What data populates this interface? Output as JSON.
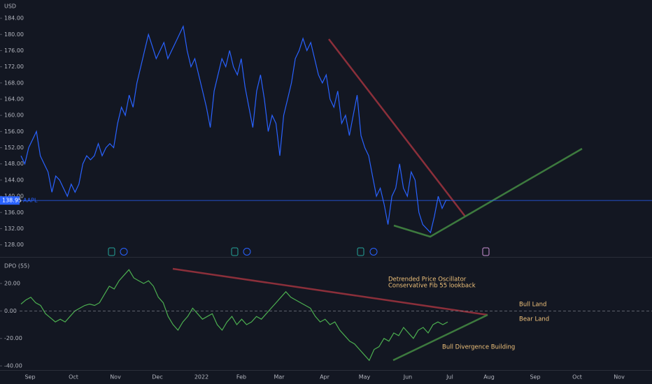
{
  "chart_data": [
    {
      "type": "line",
      "axis_label": "USD",
      "series": [
        {
          "name": "AAPL",
          "color": "#2962ff",
          "values": [
            150,
            148,
            152,
            154,
            156,
            150,
            148,
            146,
            141,
            145,
            144,
            142,
            140,
            143,
            141,
            143,
            148,
            150,
            149,
            150,
            153,
            150,
            152,
            153,
            152,
            158,
            162,
            160,
            165,
            162,
            168,
            172,
            176,
            180,
            177,
            174,
            176,
            178,
            174,
            176,
            178,
            180,
            182,
            176,
            172,
            174,
            170,
            166,
            162,
            157,
            166,
            170,
            174,
            172,
            176,
            172,
            170,
            174,
            167,
            162,
            157,
            166,
            170,
            164,
            156,
            160,
            158,
            150,
            160,
            164,
            168,
            174,
            176,
            179,
            176,
            178,
            174,
            170,
            168,
            170,
            164,
            162,
            166,
            158,
            160,
            155,
            160,
            165,
            155,
            152,
            150,
            145,
            140,
            142,
            138,
            133,
            140,
            142,
            148,
            142,
            140,
            146,
            144,
            136,
            133,
            132,
            131,
            135,
            140,
            137,
            139,
            138.95
          ]
        }
      ],
      "current_price": 138.95,
      "ylim": [
        125,
        188.5
      ],
      "yticks": [
        {
          "value": 128,
          "label": "128.00"
        },
        {
          "value": 132,
          "label": "132.00"
        },
        {
          "value": 136,
          "label": "136.00"
        },
        {
          "value": 140,
          "label": "140.00"
        },
        {
          "value": 144,
          "label": "144.00"
        },
        {
          "value": 148,
          "label": "148.00"
        },
        {
          "value": 152,
          "label": "152.00"
        },
        {
          "value": 156,
          "label": "156.00"
        },
        {
          "value": 160,
          "label": "160.00"
        },
        {
          "value": 164,
          "label": "164.00"
        },
        {
          "value": 168,
          "label": "168.00"
        },
        {
          "value": 172,
          "label": "172.00"
        },
        {
          "value": 176,
          "label": "176.00"
        },
        {
          "value": 180,
          "label": "180.00"
        },
        {
          "value": 184,
          "label": "184.00"
        }
      ]
    },
    {
      "type": "line",
      "title": "DPO (55)",
      "series": [
        {
          "color": "#4caf50",
          "values": [
            5,
            8,
            10,
            6,
            4,
            -2,
            -5,
            -8,
            -6,
            -8,
            -4,
            0,
            2,
            4,
            5,
            4,
            6,
            12,
            18,
            16,
            22,
            26,
            30,
            24,
            22,
            20,
            22,
            18,
            10,
            6,
            -4,
            -10,
            -14,
            -8,
            -4,
            2,
            -2,
            -6,
            -4,
            -2,
            -10,
            -14,
            -8,
            -4,
            -10,
            -6,
            -10,
            -8,
            -4,
            -6,
            -2,
            2,
            6,
            10,
            14,
            10,
            8,
            6,
            4,
            2,
            -4,
            -8,
            -6,
            -10,
            -8,
            -14,
            -18,
            -22,
            -24,
            -28,
            -32,
            -36,
            -28,
            -26,
            -20,
            -22,
            -16,
            -18,
            -12,
            -16,
            -20,
            -14,
            -12,
            -16,
            -10,
            -8,
            -10,
            -8
          ]
        }
      ],
      "ylim": [
        -43,
        38.8
      ],
      "yticks": [
        {
          "value": -40,
          "label": "-40.00"
        },
        {
          "value": -20,
          "label": "-20.00"
        },
        {
          "value": 0,
          "label": "0.00"
        },
        {
          "value": 20,
          "label": "20.00"
        }
      ],
      "annotations": [
        "Detrended Price Oscillator",
        "Conservative Fib 55 lookback",
        "Bull Land",
        "Bear Land",
        "Bull Divergence Building"
      ]
    }
  ],
  "time_axis": [
    "Sep",
    "Oct",
    "Nov",
    "Dec",
    "2022",
    "Feb",
    "Mar",
    "Apr",
    "May",
    "Jun",
    "Jul",
    "Aug",
    "Sep",
    "Oct",
    "Nov"
  ]
}
